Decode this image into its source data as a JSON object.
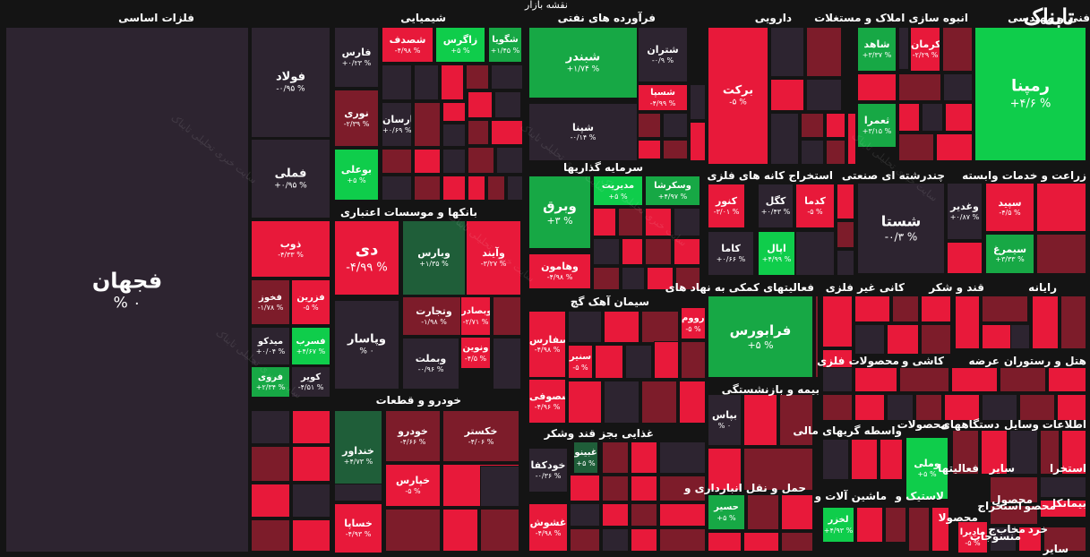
{
  "title": "نقشه بازار",
  "brand": "تابناک",
  "watermark": "سایت خبری تحلیلی تابناک",
  "colors": {
    "bg": "#141414",
    "neutral": "#2d2430",
    "red_strong": "#e8193a",
    "red": "#c2172f",
    "red_dark": "#7d1c2a",
    "green_strong": "#0fcd4b",
    "green": "#17a845",
    "green_dark": "#1f5e39"
  },
  "sectors": [
    "فلزات اساسی",
    "شیمیایی",
    "فرآورده های نفتی",
    "دارویی",
    "انبوه سازی املاک و مستغلات",
    "فنی و مهندسی",
    "سرمایه گذاریها",
    "استخراج کانه های فلزی",
    "چندرشته ای صنعتی",
    "زراعت و خدمات وابسته",
    "بانکها و موسسات اعتباری",
    "سیمان آهک گچ",
    "فعالیتهای کمکی به نهاد های",
    "کانی غیر فلزی",
    "قند و شکر",
    "رایانه",
    "بیمه و بازنشستگی",
    "محصولات فلزی",
    "کاشی و",
    "عرضه",
    "هتل و رستوران",
    "خودرو و قطعات",
    "غذایی بجز قند وشکر",
    "واسطه گریهای مالی",
    "محصولات",
    "دستگاههای",
    "وسایل",
    "اطلاعات",
    "حمل و نقل انبارداری و",
    "ماشین آلات و",
    "لاستیک و",
    "فعالیتها",
    "سایر",
    "استخرا",
    "محصول",
    "استخراج",
    "بیمانکا",
    "محصو",
    "محصولا",
    "منسوجات",
    "خرد",
    "ج",
    "مخاب",
    "سایر"
  ],
  "tiles": [
    {
      "name": "فجهان",
      "pct": "% ۰"
    },
    {
      "name": "فولاد",
      "pct": "-۰/۹۵ %"
    },
    {
      "name": "فملی",
      "pct": "+۰/۹۵ %"
    },
    {
      "name": "ذوب",
      "pct": "-۴/۳۳ %"
    },
    {
      "name": "فخوز",
      "pct": "-۱/۷۸ %"
    },
    {
      "name": "فزرین",
      "pct": "-۵ %"
    },
    {
      "name": "میدکو",
      "pct": "+۰/۰۴ %"
    },
    {
      "name": "فسرب",
      "pct": "+۴/۶۷ %"
    },
    {
      "name": "فروی",
      "pct": "+۲/۳۴ %"
    },
    {
      "name": "کویر",
      "pct": "-۴/۵۱ %"
    },
    {
      "name": "فارس",
      "pct": "+۰/۲۳ %"
    },
    {
      "name": "شصدف",
      "pct": "-۴/۹۸ %"
    },
    {
      "name": "زاگرس",
      "pct": "+۵ %"
    },
    {
      "name": "شگویا",
      "pct": "+۱/۴۵ %"
    },
    {
      "name": "نوری",
      "pct": "-۲/۳۹ %"
    },
    {
      "name": "پارسان",
      "pct": "+۰/۶۹ %"
    },
    {
      "name": "بوعلی",
      "pct": "+۵ %"
    },
    {
      "name": "شبندر",
      "pct": "+۱/۷۴ %"
    },
    {
      "name": "شتران",
      "pct": "-۰/۹ %"
    },
    {
      "name": "شسپا",
      "pct": "-۴/۹۹ %"
    },
    {
      "name": "شپنا",
      "pct": "-۰/۱۴ %"
    },
    {
      "name": "برکت",
      "pct": "-۵ %"
    },
    {
      "name": "شاهد",
      "pct": "+۳/۳۷ %"
    },
    {
      "name": "کرمان",
      "pct": "-۲/۲۹ %"
    },
    {
      "name": "ثعمرا",
      "pct": "+۳/۱۵ %"
    },
    {
      "name": "رمپنا",
      "pct": "+۴/۶ %"
    },
    {
      "name": "وبرق",
      "pct": "+۳ %"
    },
    {
      "name": "مدیریت",
      "pct": "+۵ %"
    },
    {
      "name": "وسکرشا",
      "pct": "+۴/۹۷ %"
    },
    {
      "name": "وهامون",
      "pct": "-۴/۹۸ %"
    },
    {
      "name": "کنور",
      "pct": "-۳/۰۱ %"
    },
    {
      "name": "کگل",
      "pct": "+۰/۴۳ %"
    },
    {
      "name": "کدما",
      "pct": "-۵ %"
    },
    {
      "name": "کاما",
      "pct": "+۰/۶۶ %"
    },
    {
      "name": "اپال",
      "pct": "+۴/۹۹ %"
    },
    {
      "name": "شستا",
      "pct": "-۰/۳ %"
    },
    {
      "name": "وغدیر",
      "pct": "+۰/۸۷ %"
    },
    {
      "name": "سپید",
      "pct": "-۴/۵ %"
    },
    {
      "name": "سیمرغ",
      "pct": "+۳/۳۳ %"
    },
    {
      "name": "دی",
      "pct": "-۴/۹۹ %"
    },
    {
      "name": "وبارس",
      "pct": "+۱/۳۵ %"
    },
    {
      "name": "وآیند",
      "pct": "-۳/۲۷ %"
    },
    {
      "name": "وتجارت",
      "pct": "-۱/۹۸ %"
    },
    {
      "name": "وبصادر",
      "pct": "-۲/۷۱ %"
    },
    {
      "name": "وپاسار",
      "pct": "% ۰"
    },
    {
      "name": "ونوین",
      "pct": "-۴/۵ %"
    },
    {
      "name": "وبملت",
      "pct": "-۰/۹۶ %"
    },
    {
      "name": "سارووم",
      "pct": "-۵ %"
    },
    {
      "name": "سفارس",
      "pct": "-۴/۹۸ %"
    },
    {
      "name": "سنیر",
      "pct": "-۵ %"
    },
    {
      "name": "سصوفی",
      "pct": "-۴/۹۶ %"
    },
    {
      "name": "فرابورس",
      "pct": "+۵ %"
    },
    {
      "name": "بپاس",
      "pct": "% ۰"
    },
    {
      "name": "خنداور",
      "pct": "+۴/۷۳ %"
    },
    {
      "name": "خودرو",
      "pct": "-۴/۶۶ %"
    },
    {
      "name": "خکستر",
      "pct": "-۴/۰۶ %"
    },
    {
      "name": "خپارس",
      "pct": "-۵ %"
    },
    {
      "name": "خساپا",
      "pct": "-۴/۹۳ %"
    },
    {
      "name": "غبینو",
      "pct": "+۵ %"
    },
    {
      "name": "خودکفا",
      "pct": "-۰/۳۶ %"
    },
    {
      "name": "غشوش",
      "pct": "-۴/۹۸ %"
    },
    {
      "name": "وملی",
      "pct": "+۵ %"
    },
    {
      "name": "حسیر",
      "pct": "+۵ %"
    },
    {
      "name": "لخزر",
      "pct": "+۴/۹۳ %"
    },
    {
      "name": "مادیرا",
      "pct": "-۵ %"
    }
  ]
}
